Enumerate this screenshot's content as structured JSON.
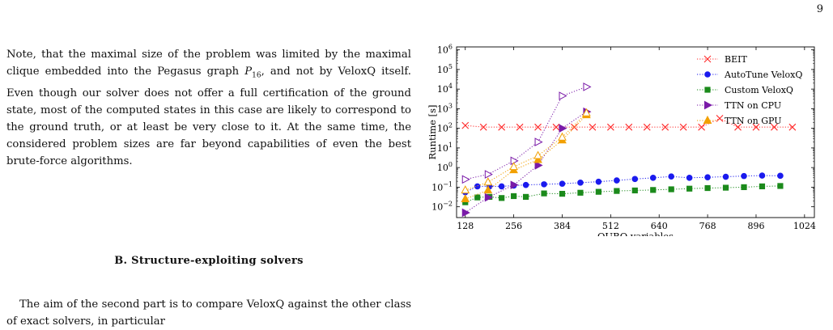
{
  "page_number": "9",
  "paragraph1": {
    "part1": "Note, that the maximal size of the problem was limited by the maximal clique embedded into the Pegasus graph ",
    "p_symbol": "P",
    "p_sub": "16",
    "part2": ", and not by VeloxQ itself. Even though our solver does not offer a full certification of the ground state, most of the computed states in this case are likely to correspond to the ground truth, or at least be very close to it. At the same time, the considered problem sizes are far beyond capabilities of even the best brute-force algorithms."
  },
  "section_heading": "B.   Structure-exploiting solvers",
  "paragraph2": "The aim of the second part is to compare VeloxQ against the other class of exact solvers, in particular",
  "chart_data": {
    "type": "line",
    "xlabel": "QUBO variables",
    "ylabel": "Runtime [s]",
    "x_ticks": [
      "128",
      "256",
      "384",
      "512",
      "640",
      "768",
      "896",
      "1024"
    ],
    "x_tick_values": [
      128,
      256,
      384,
      512,
      640,
      768,
      896,
      1024
    ],
    "y_ticks": [
      "10",
      "10",
      "10",
      "10",
      "10",
      "10",
      "10",
      "10",
      "10"
    ],
    "y_tick_exponents": [
      "−2",
      "−1",
      "0",
      "1",
      "2",
      "3",
      "4",
      "5",
      "6"
    ],
    "y_tick_values": [
      -2,
      -1,
      0,
      1,
      2,
      3,
      4,
      5,
      6
    ],
    "xlim": [
      105,
      1050
    ],
    "ylim_log10": [
      -2.55,
      6.15
    ],
    "y_scale": "log",
    "legend_position": "top-right",
    "series": [
      {
        "name": "BEIT",
        "color": "#ff2a2a",
        "marker": "x",
        "points": [
          [
            128,
            140
          ],
          [
            176,
            115
          ],
          [
            224,
            115
          ],
          [
            272,
            115
          ],
          [
            320,
            115
          ],
          [
            368,
            115
          ],
          [
            416,
            115
          ],
          [
            464,
            115
          ],
          [
            512,
            115
          ],
          [
            560,
            115
          ],
          [
            608,
            115
          ],
          [
            656,
            115
          ],
          [
            704,
            115
          ],
          [
            752,
            115
          ],
          [
            800,
            320
          ],
          [
            848,
            115
          ],
          [
            896,
            115
          ],
          [
            944,
            115
          ],
          [
            992,
            115
          ]
        ]
      },
      {
        "name": "AutoTune VeloxQ",
        "color": "#1a1aee",
        "marker": "circle",
        "points": [
          [
            128,
            0.055
          ],
          [
            160,
            0.11
          ],
          [
            192,
            0.11
          ],
          [
            224,
            0.11
          ],
          [
            256,
            0.12
          ],
          [
            288,
            0.13
          ],
          [
            336,
            0.14
          ],
          [
            384,
            0.15
          ],
          [
            432,
            0.17
          ],
          [
            480,
            0.19
          ],
          [
            528,
            0.22
          ],
          [
            576,
            0.26
          ],
          [
            624,
            0.3
          ],
          [
            672,
            0.35
          ],
          [
            720,
            0.3
          ],
          [
            768,
            0.32
          ],
          [
            816,
            0.34
          ],
          [
            864,
            0.37
          ],
          [
            912,
            0.39
          ],
          [
            960,
            0.38
          ]
        ]
      },
      {
        "name": "Custom VeloxQ",
        "color": "#1b8a1b",
        "marker": "square",
        "points": [
          [
            128,
            0.017
          ],
          [
            160,
            0.03
          ],
          [
            192,
            0.032
          ],
          [
            224,
            0.028
          ],
          [
            256,
            0.035
          ],
          [
            288,
            0.032
          ],
          [
            336,
            0.048
          ],
          [
            384,
            0.046
          ],
          [
            432,
            0.052
          ],
          [
            480,
            0.058
          ],
          [
            528,
            0.064
          ],
          [
            576,
            0.068
          ],
          [
            624,
            0.072
          ],
          [
            672,
            0.078
          ],
          [
            720,
            0.084
          ],
          [
            768,
            0.09
          ],
          [
            816,
            0.094
          ],
          [
            864,
            0.1
          ],
          [
            912,
            0.11
          ],
          [
            960,
            0.115
          ]
        ]
      },
      {
        "name": "TTN on CPU",
        "color": "#7a1aa8",
        "marker": "triangle-right",
        "points": [
          [
            128,
            0.005
          ],
          [
            188,
            0.03
          ],
          [
            256,
            0.13
          ],
          [
            320,
            1.3
          ],
          [
            384,
            100
          ],
          [
            448,
            700
          ]
        ]
      },
      {
        "name": "TTN on CPU (open)",
        "color": "#7a1aa8",
        "marker": "triangle-right-open",
        "points": [
          [
            128,
            0.25
          ],
          [
            188,
            0.45
          ],
          [
            256,
            2.2
          ],
          [
            320,
            20
          ],
          [
            384,
            4500
          ],
          [
            448,
            13000
          ]
        ]
      },
      {
        "name": "TTN on GPU",
        "color": "#f2a000",
        "marker": "triangle-up",
        "points": [
          [
            128,
            0.025
          ],
          [
            188,
            0.07
          ],
          [
            256,
            0.75
          ],
          [
            320,
            2.5
          ],
          [
            384,
            25
          ],
          [
            448,
            480
          ]
        ]
      },
      {
        "name": "TTN on GPU (open)",
        "color": "#f2a000",
        "marker": "triangle-up-open",
        "points": [
          [
            128,
            0.07
          ],
          [
            188,
            0.18
          ],
          [
            256,
            1.1
          ],
          [
            320,
            4
          ],
          [
            384,
            35
          ],
          [
            448,
            600
          ]
        ]
      }
    ],
    "legend_entries": [
      "BEIT",
      "AutoTune VeloxQ",
      "Custom VeloxQ",
      "TTN on CPU",
      "TTN on GPU"
    ]
  }
}
